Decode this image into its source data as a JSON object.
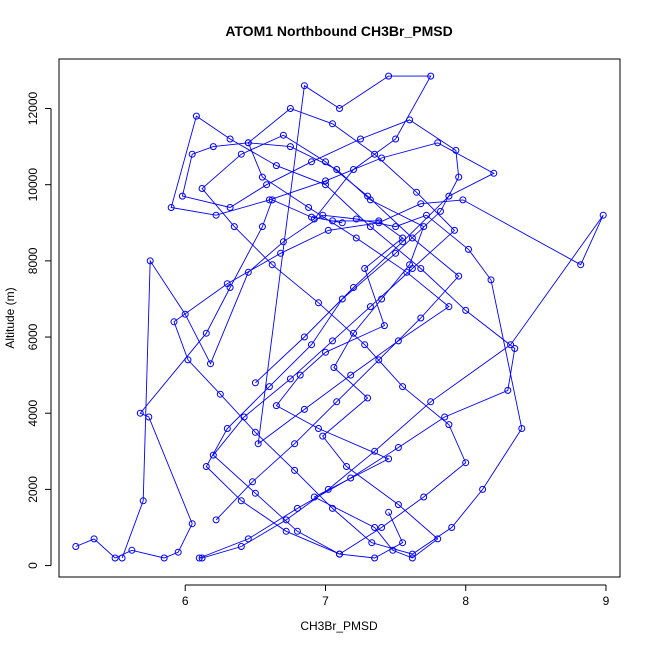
{
  "chart_data": {
    "type": "line",
    "title": "ATOM1 Northbound CH3Br_PMSD",
    "xlabel": "CH3Br_PMSD",
    "ylabel": "Altitude (m)",
    "xlim": [
      5.1,
      9.1
    ],
    "ylim": [
      -300,
      13300
    ],
    "x_ticks": [
      "6",
      "7",
      "8",
      "9"
    ],
    "y_ticks": [
      "0",
      "2000",
      "4000",
      "6000",
      "8000",
      "10000",
      "12000"
    ],
    "series_color": "#0000ff",
    "markers": "open-circle",
    "series": [
      {
        "x": [
          5.22,
          5.35,
          5.5,
          5.62,
          5.85,
          5.95,
          6.05,
          5.74,
          5.68,
          6.15,
          6.32,
          6.55,
          6.62,
          6.9,
          7.12,
          7.05,
          7.38,
          7.55,
          7.28,
          7.42,
          7.0,
          6.82,
          6.65,
          6.95,
          7.45,
          6.92,
          7.35,
          7.48,
          7.62,
          7.8,
          7.52,
          7.15,
          6.98,
          7.3,
          7.06,
          7.2,
          7.4,
          7.6,
          7.7,
          7.32,
          7.08,
          6.75,
          6.45,
          6.2,
          6.05,
          5.98,
          6.32,
          6.58,
          6.9,
          7.25,
          7.6,
          7.93,
          7.95,
          7.82,
          7.5,
          7.12,
          6.9,
          6.6,
          6.3,
          6.15,
          6.4,
          6.72,
          7.1,
          7.35,
          7.55,
          7.45
        ],
        "y": [
          500,
          700,
          200,
          400,
          200,
          350,
          1100,
          3900,
          4000,
          6100,
          7300,
          8900,
          9600,
          9150,
          9000,
          9050,
          9050,
          8600,
          7800,
          6300,
          5600,
          5000,
          4200,
          3600,
          2800,
          1800,
          1000,
          400,
          200,
          700,
          1600,
          2600,
          3400,
          4400,
          5200,
          6100,
          7000,
          7900,
          8900,
          9600,
          10400,
          11000,
          11100,
          11000,
          10800,
          9700,
          9400,
          10000,
          10600,
          11200,
          11700,
          10900,
          10200,
          9300,
          8200,
          7000,
          5800,
          4700,
          3600,
          2600,
          1700,
          900,
          300,
          200,
          600,
          1400
        ]
      },
      {
        "x": [
          5.55,
          5.7,
          5.75,
          6.0,
          6.18,
          6.45,
          6.7,
          6.98,
          7.22,
          7.5,
          7.72,
          8.02,
          8.18,
          8.4,
          8.12,
          7.9,
          7.62,
          7.33,
          7.05,
          6.78,
          6.5,
          6.25,
          6.02,
          5.92,
          6.3,
          6.68,
          7.02,
          7.38,
          7.68,
          7.98,
          8.82,
          8.98,
          8.32,
          7.75,
          7.35,
          7.02,
          6.72,
          6.4,
          6.12,
          6.1,
          6.45,
          6.8,
          7.18,
          7.52,
          7.85,
          8.3,
          8.35,
          8.0,
          7.68,
          7.32,
          7.0,
          6.65,
          6.32,
          6.08,
          5.9,
          6.22,
          6.6,
          7.0,
          7.4,
          7.8,
          8.2,
          7.88,
          7.55,
          7.2,
          6.85,
          6.5
        ],
        "y": [
          200,
          1700,
          8000,
          6600,
          5300,
          7700,
          8500,
          9200,
          9100,
          8900,
          9200,
          8300,
          7500,
          3600,
          2000,
          1000,
          300,
          600,
          1500,
          2500,
          3500,
          4500,
          5400,
          6400,
          7400,
          8200,
          8800,
          9000,
          9500,
          9600,
          7900,
          9200,
          5800,
          4300,
          3000,
          2000,
          1200,
          500,
          200,
          200,
          700,
          1500,
          2300,
          3100,
          3900,
          4600,
          5700,
          6700,
          7800,
          8900,
          10000,
          10500,
          11200,
          11800,
          9400,
          9200,
          9600,
          10100,
          10700,
          11100,
          10300,
          9700,
          8500,
          7300,
          6000,
          4800
        ]
      },
      {
        "x": [
          6.22,
          6.48,
          6.78,
          7.08,
          7.38,
          7.68,
          7.95,
          7.62,
          7.3,
          7.0,
          6.7,
          6.4,
          6.12,
          6.35,
          6.62,
          6.95,
          7.28,
          7.55,
          7.88,
          8.0,
          7.7,
          7.4,
          7.1,
          6.8,
          6.5,
          6.2,
          6.42,
          6.75,
          7.05,
          7.32,
          7.62,
          7.92,
          7.65,
          7.35,
          7.05,
          6.75,
          6.45,
          6.55,
          6.88,
          7.22,
          7.58,
          7.88,
          7.52,
          7.18,
          6.85,
          6.52,
          6.85,
          7.1,
          7.45,
          7.75,
          7.5,
          7.2,
          6.92
        ],
        "y": [
          1200,
          2200,
          3200,
          4300,
          5400,
          6500,
          7600,
          8600,
          9700,
          10600,
          11300,
          10800,
          9900,
          8900,
          7900,
          6900,
          5800,
          4700,
          3700,
          2700,
          1800,
          1000,
          300,
          900,
          1900,
          2900,
          3900,
          4900,
          5900,
          6800,
          7800,
          8800,
          9800,
          10800,
          11600,
          12000,
          11100,
          10200,
          9400,
          8600,
          7700,
          6800,
          5900,
          5000,
          4100,
          3200,
          12600,
          12000,
          12850,
          12850,
          11200,
          10400,
          9100
        ]
      }
    ]
  }
}
